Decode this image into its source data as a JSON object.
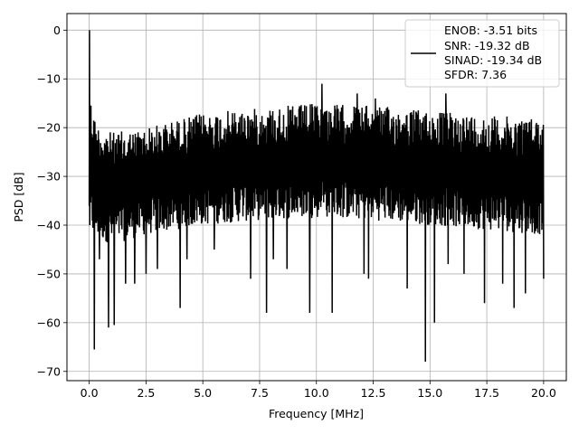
{
  "chart_data": {
    "type": "line",
    "title": "",
    "xlabel": "Frequency [MHz]",
    "ylabel": "PSD [dB]",
    "xlim": [
      -0.98,
      21.0
    ],
    "ylim": [
      -71.9,
      3.4
    ],
    "grid": true,
    "legend_placement": "top-right",
    "x_ticks": [
      0.0,
      2.5,
      5.0,
      7.5,
      10.0,
      12.5,
      15.0,
      17.5,
      20.0
    ],
    "x_tick_labels": [
      "0.0",
      "2.5",
      "5.0",
      "7.5",
      "10.0",
      "12.5",
      "15.0",
      "17.5",
      "20.0"
    ],
    "y_ticks": [
      0,
      -10,
      -20,
      -30,
      -40,
      -50,
      -60,
      -70
    ],
    "y_tick_labels": [
      "0",
      "−10",
      "−20",
      "−30",
      "−40",
      "−50",
      "−60",
      "−70"
    ],
    "series": [
      {
        "color": "#000000",
        "x_start": 0.0,
        "x_end": 20.0,
        "n_points": 1600,
        "peak": {
          "x": 0.02,
          "y": 0.0
        },
        "upper_envelope": [
          [
            0.0,
            -12
          ],
          [
            0.3,
            -19
          ],
          [
            1.0,
            -21
          ],
          [
            2.5,
            -20
          ],
          [
            5.0,
            -17
          ],
          [
            7.5,
            -16
          ],
          [
            10.0,
            -15
          ],
          [
            12.5,
            -15.5
          ],
          [
            15.0,
            -16.5
          ],
          [
            17.5,
            -17.5
          ],
          [
            20.0,
            -18
          ]
        ],
        "lower_envelope": [
          [
            0.0,
            -42
          ],
          [
            1.0,
            -44
          ],
          [
            2.5,
            -42
          ],
          [
            5.0,
            -40
          ],
          [
            7.5,
            -39
          ],
          [
            10.0,
            -38.5
          ],
          [
            12.5,
            -39
          ],
          [
            15.0,
            -40
          ],
          [
            17.5,
            -41
          ],
          [
            20.0,
            -42
          ]
        ],
        "deep_dips": [
          {
            "x": 0.22,
            "y": -65.5
          },
          {
            "x": 0.45,
            "y": -47
          },
          {
            "x": 0.85,
            "y": -61
          },
          {
            "x": 1.1,
            "y": -60.5
          },
          {
            "x": 1.6,
            "y": -52
          },
          {
            "x": 2.0,
            "y": -52
          },
          {
            "x": 2.5,
            "y": -50
          },
          {
            "x": 3.0,
            "y": -49
          },
          {
            "x": 4.0,
            "y": -57
          },
          {
            "x": 4.3,
            "y": -47
          },
          {
            "x": 5.5,
            "y": -45
          },
          {
            "x": 7.1,
            "y": -51
          },
          {
            "x": 7.8,
            "y": -58
          },
          {
            "x": 8.1,
            "y": -47
          },
          {
            "x": 8.7,
            "y": -49
          },
          {
            "x": 9.7,
            "y": -58
          },
          {
            "x": 10.7,
            "y": -58
          },
          {
            "x": 12.1,
            "y": -50
          },
          {
            "x": 12.3,
            "y": -51
          },
          {
            "x": 14.0,
            "y": -53
          },
          {
            "x": 14.8,
            "y": -68
          },
          {
            "x": 15.2,
            "y": -60
          },
          {
            "x": 15.8,
            "y": -48
          },
          {
            "x": 16.5,
            "y": -50
          },
          {
            "x": 17.4,
            "y": -56
          },
          {
            "x": 18.2,
            "y": -52
          },
          {
            "x": 18.7,
            "y": -57
          },
          {
            "x": 19.2,
            "y": -54
          },
          {
            "x": 20.0,
            "y": -51
          }
        ],
        "tall_spikes": [
          {
            "x": 10.25,
            "y": -11
          },
          {
            "x": 11.8,
            "y": -13
          },
          {
            "x": 12.6,
            "y": -14
          },
          {
            "x": 15.7,
            "y": -13
          }
        ]
      }
    ],
    "legend": {
      "entries": [
        {
          "label_lines": [
            "ENOB: -3.51 bits",
            "SNR: -19.32 dB",
            "SINAD: -19.34 dB",
            "SFDR: 7.36"
          ]
        }
      ]
    }
  }
}
